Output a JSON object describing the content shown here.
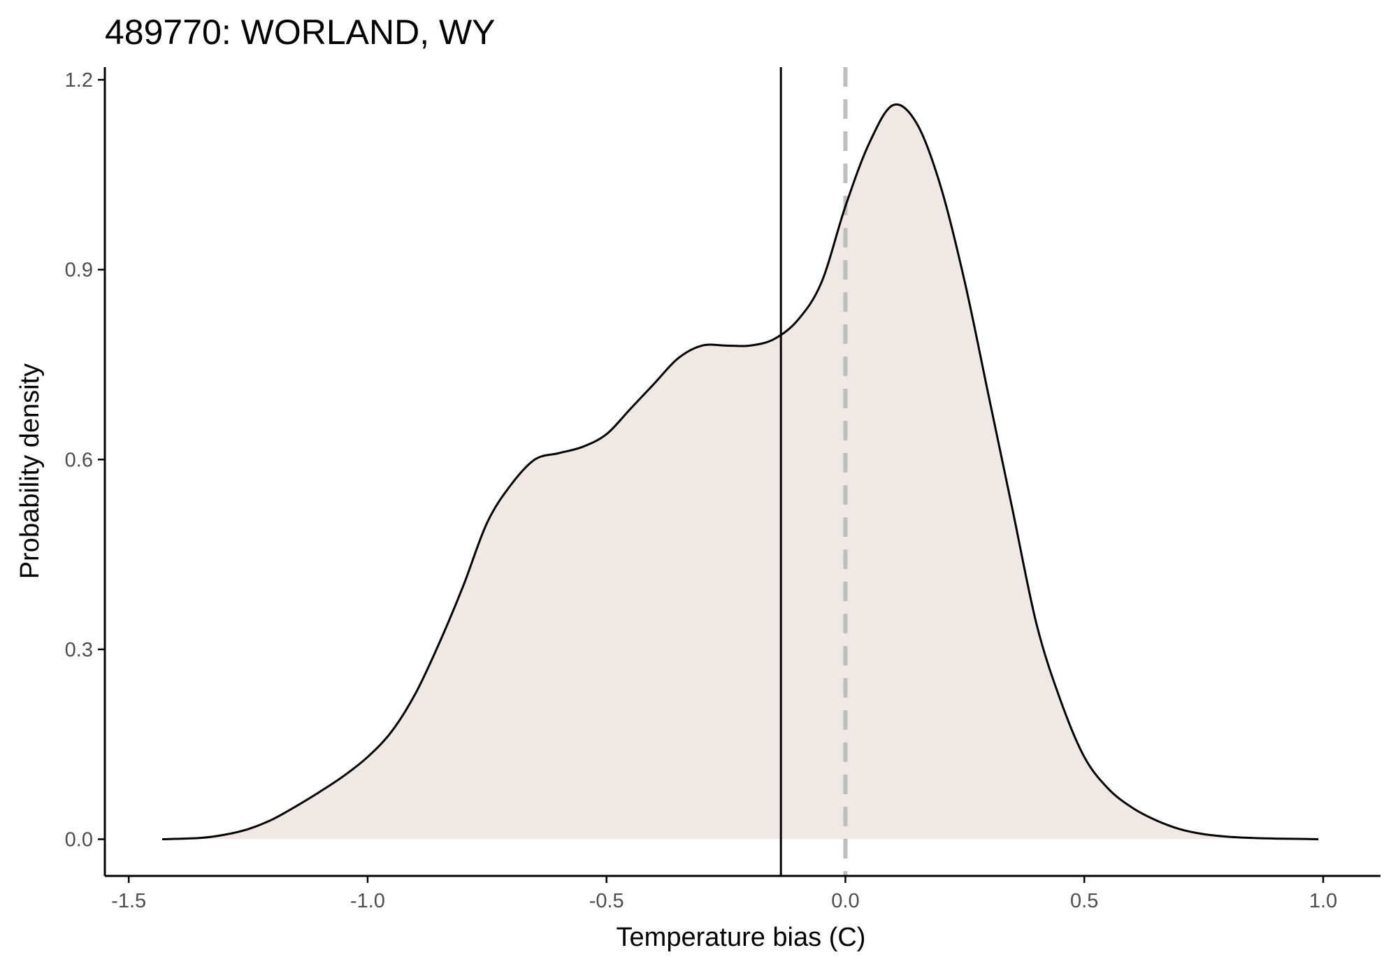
{
  "chart_data": {
    "type": "area",
    "title": "489770: WORLAND, WY",
    "xlabel": "Temperature bias (C)",
    "ylabel": "Probability density",
    "xlim": [
      -1.55,
      1.12
    ],
    "ylim": [
      -0.058,
      1.22
    ],
    "xticks": [
      -1.5,
      -1.0,
      -0.5,
      0.0,
      0.5,
      1.0
    ],
    "xtick_labels": [
      "-1.5",
      "-1.0",
      "-0.5",
      "0.0",
      "0.5",
      "1.0"
    ],
    "yticks": [
      0.0,
      0.3,
      0.6,
      0.9,
      1.2
    ],
    "ytick_labels": [
      "0.0",
      "0.3",
      "0.6",
      "0.9",
      "1.2"
    ],
    "grid": false,
    "legend": "none",
    "series": [
      {
        "x": [
          -1.43,
          -1.35,
          -1.3,
          -1.25,
          -1.2,
          -1.15,
          -1.1,
          -1.05,
          -1.0,
          -0.95,
          -0.9,
          -0.85,
          -0.8,
          -0.75,
          -0.7,
          -0.65,
          -0.6,
          -0.55,
          -0.5,
          -0.45,
          -0.4,
          -0.35,
          -0.3,
          -0.25,
          -0.2,
          -0.15,
          -0.1,
          -0.05,
          0.0,
          0.05,
          0.1,
          0.15,
          0.2,
          0.25,
          0.3,
          0.35,
          0.4,
          0.45,
          0.5,
          0.55,
          0.6,
          0.65,
          0.7,
          0.75,
          0.8,
          0.85,
          0.9,
          0.95,
          0.99
        ],
        "y": [
          0.0,
          0.002,
          0.007,
          0.016,
          0.031,
          0.052,
          0.075,
          0.1,
          0.13,
          0.17,
          0.23,
          0.31,
          0.4,
          0.5,
          0.56,
          0.6,
          0.61,
          0.62,
          0.64,
          0.68,
          0.72,
          0.76,
          0.78,
          0.78,
          0.78,
          0.79,
          0.82,
          0.88,
          1.0,
          1.1,
          1.16,
          1.13,
          1.03,
          0.88,
          0.7,
          0.52,
          0.34,
          0.22,
          0.13,
          0.08,
          0.05,
          0.03,
          0.016,
          0.008,
          0.004,
          0.002,
          0.001,
          0.0005,
          0.0
        ]
      }
    ],
    "reference_lines": [
      {
        "x": -0.135,
        "style": "solid",
        "color": "#000000"
      },
      {
        "x": 0.0,
        "style": "dashed",
        "color": "#bebebe"
      }
    ],
    "colors": {
      "fill": "#efe8e4",
      "line": "#000000",
      "axis": "#000000",
      "tick_text": "#4d4d4d"
    }
  }
}
